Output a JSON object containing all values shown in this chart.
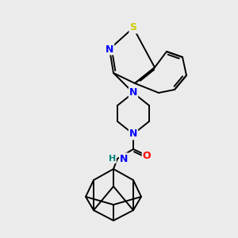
{
  "background_color": "#ebebeb",
  "bond_color": "#000000",
  "atom_colors": {
    "N": "#0000ff",
    "S": "#cccc00",
    "O": "#ff0000",
    "NH": "#008080",
    "C": "#000000"
  },
  "figsize": [
    3.0,
    3.0
  ],
  "dpi": 100,
  "lw": 1.4,
  "fs": 8.5
}
